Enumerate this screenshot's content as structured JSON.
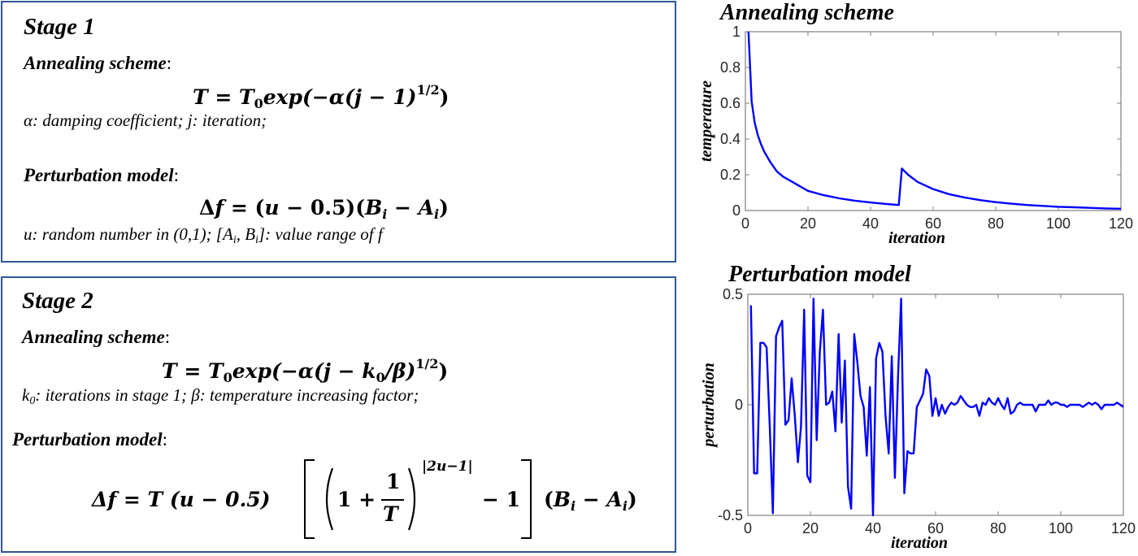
{
  "stage1": {
    "title": "Stage 1",
    "annealing_label": "Annealing scheme",
    "annealing_formula": {
      "lhs": "T",
      "eq": " = ",
      "t0": "T",
      "t0_sub": "0",
      "exp": "exp",
      "body": "(−α(j − 1)",
      "power": "1/2",
      "close": ")"
    },
    "annealing_desc": {
      "sym1": "α",
      "text1": ": damping coefficient;   ",
      "sym2": "j",
      "text2": ": iteration;"
    },
    "perturbation_label": "Perturbation model",
    "perturbation_formula": {
      "delta": "Δ",
      "f": "f",
      "eq": " = (",
      "u": "u",
      "mid": " − 0.5)(",
      "b": "B",
      "b_sub": "i",
      "minus": " − ",
      "a": "A",
      "a_sub": "i",
      "close": ")"
    },
    "perturbation_desc": {
      "sym1": "u",
      "text1": ": random number in (0,1);   [",
      "a": "A",
      "a_sub": "i",
      "comma": ", ",
      "b": "B",
      "b_sub": "i",
      "text2": "]: value range of f"
    }
  },
  "stage2": {
    "title": "Stage 2",
    "annealing_label": "Annealing scheme",
    "annealing_formula": {
      "lhs": "T",
      "eq": " = ",
      "t0": "T",
      "t0_sub": "0",
      "exp": "exp",
      "body1": "(−α(j − ",
      "k": "k",
      "k_sub": "0",
      "body2": "/β)",
      "power": "1/2",
      "close": ")"
    },
    "annealing_desc": {
      "sym1": "k",
      "sym1_sub": "0",
      "text1": ": iterations in stage 1;   ",
      "sym2": "β",
      "text2": ": temperature increasing factor;"
    },
    "perturbation_label": "Perturbation model",
    "perturbation_formula": {
      "lhs": "Δf = T (u − 0.5)",
      "inner_one": "1 +",
      "frac_num": "1",
      "frac_den": "T",
      "exponent": "|2u−1|",
      "minus_one": "− 1",
      "tail_open": "(",
      "b": "B",
      "b_sub": "i",
      "minus": " − ",
      "a": "A",
      "a_sub": "i",
      "tail_close": ")"
    }
  },
  "colors": {
    "panel_border": "#2f5597",
    "line": "#0000ff",
    "axis": "#808080",
    "tick_text": "#262626"
  },
  "chart_data": [
    {
      "type": "line",
      "title": "Annealing scheme",
      "xlabel": "iteration",
      "ylabel": "temperature",
      "xlim": [
        0,
        120
      ],
      "ylim": [
        0,
        1
      ],
      "xticks": [
        "0",
        "20",
        "40",
        "60",
        "80",
        "100",
        "120"
      ],
      "yticks": [
        "0",
        "0.2",
        "0.4",
        "0.6",
        "0.8",
        "1"
      ],
      "grid": false,
      "series": [
        {
          "name": "temperature",
          "x": [
            1,
            2,
            3,
            4,
            5,
            6,
            8,
            10,
            12,
            15,
            18,
            20,
            25,
            30,
            35,
            40,
            45,
            49,
            50,
            52,
            55,
            60,
            65,
            70,
            75,
            80,
            85,
            90,
            95,
            100,
            105,
            110,
            115,
            120
          ],
          "values": [
            1.0,
            0.61,
            0.49,
            0.42,
            0.37,
            0.33,
            0.27,
            0.22,
            0.19,
            0.16,
            0.13,
            0.11,
            0.086,
            0.068,
            0.055,
            0.045,
            0.037,
            0.031,
            0.235,
            0.2,
            0.16,
            0.12,
            0.092,
            0.073,
            0.058,
            0.047,
            0.038,
            0.031,
            0.026,
            0.021,
            0.018,
            0.015,
            0.012,
            0.01
          ]
        }
      ]
    },
    {
      "type": "line",
      "title": "Perturbation model",
      "xlabel": "iteration",
      "ylabel": "perturbation",
      "xlim": [
        0,
        120
      ],
      "ylim": [
        -0.5,
        0.5
      ],
      "xticks": [
        "0",
        "20",
        "40",
        "60",
        "80",
        "100",
        "120"
      ],
      "yticks": [
        "-0.5",
        "0",
        "0.5"
      ],
      "grid": false,
      "series": [
        {
          "name": "perturbation",
          "x_start": 1,
          "x_step": 1,
          "values": [
            0.45,
            -0.31,
            -0.31,
            0.28,
            0.28,
            0.26,
            -0.1,
            -0.49,
            0.31,
            0.35,
            0.38,
            -0.09,
            -0.07,
            0.12,
            -0.05,
            -0.26,
            -0.1,
            0.43,
            -0.32,
            -0.35,
            0.48,
            -0.16,
            0.24,
            0.43,
            0.0,
            0.01,
            0.06,
            -0.12,
            0.32,
            -0.08,
            0.2,
            -0.37,
            -0.47,
            0.32,
            0.19,
            0.04,
            -0.01,
            -0.23,
            0.08,
            -0.5,
            0.21,
            0.28,
            0.24,
            -0.05,
            -0.22,
            0.22,
            -0.33,
            0.13,
            0.48,
            -0.4,
            -0.21,
            -0.22,
            -0.22,
            -0.01,
            0.02,
            0.05,
            0.16,
            0.13,
            -0.05,
            0.03,
            -0.05,
            0.0,
            -0.04,
            -0.01,
            0.01,
            0.0,
            0.01,
            0.04,
            0.02,
            0.0,
            -0.01,
            -0.01,
            0.0,
            -0.05,
            0.01,
            0.0,
            0.03,
            0.01,
            0.0,
            0.03,
            0.0,
            -0.02,
            0.03,
            -0.04,
            -0.03,
            0.0,
            0.01,
            0.0,
            0.0,
            0.0,
            0.0,
            -0.03,
            0.0,
            0.0,
            0.0,
            0.02,
            0.0,
            0.01,
            0.01,
            0.0,
            0.0,
            -0.01,
            0.0,
            0.0,
            0.0,
            0.0,
            -0.01,
            0.0,
            0.01,
            0.0,
            0.01,
            0.0,
            -0.02,
            0.0,
            0.0,
            0.0,
            0.0,
            0.01,
            0.0,
            -0.01
          ]
        }
      ]
    }
  ]
}
